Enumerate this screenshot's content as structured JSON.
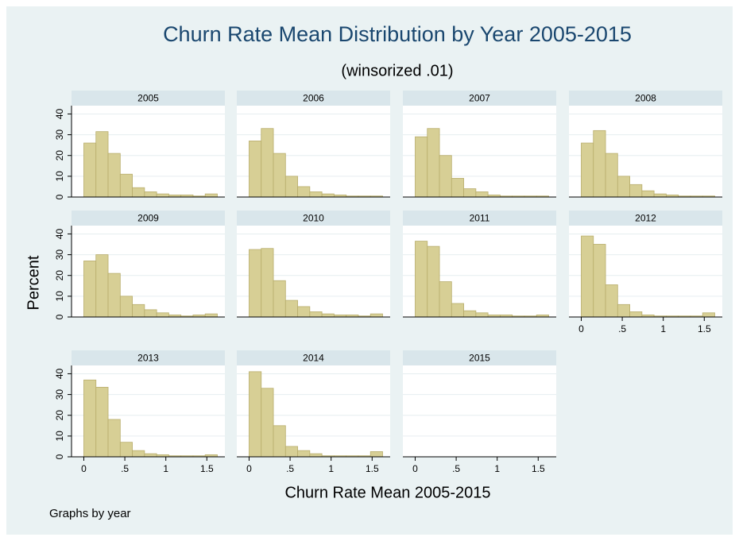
{
  "title": "Churn Rate Mean Distribution by Year 2005-2015",
  "subtitle": "(winsorized .01)",
  "ylabel": "Percent",
  "xlabel": "Churn Rate Mean 2005-2015",
  "note": "Graphs by year",
  "bar_color": "#d7cf95",
  "xlim": [
    -0.15,
    1.72
  ],
  "ylim": [
    0,
    44
  ],
  "xticks": [
    0,
    {
      "value": 0.5,
      "label": ".5"
    },
    1,
    1.5
  ],
  "yticks": [
    0,
    10,
    20,
    30,
    40
  ],
  "grid": true,
  "chart_data": [
    {
      "type": "histogram",
      "title": "2005",
      "bins": [
        0,
        0.148,
        0.296,
        0.444,
        0.592,
        0.74,
        0.888,
        1.036,
        1.184,
        1.332,
        1.48,
        1.628
      ],
      "values": [
        26,
        31.5,
        21,
        11,
        4.5,
        2.5,
        1.5,
        1,
        1,
        0.5,
        1.5
      ]
    },
    {
      "type": "histogram",
      "title": "2006",
      "bins": [
        0,
        0.148,
        0.296,
        0.444,
        0.592,
        0.74,
        0.888,
        1.036,
        1.184,
        1.332,
        1.48,
        1.628
      ],
      "values": [
        27,
        33,
        21,
        10,
        5,
        2.5,
        1.5,
        1,
        0.5,
        0.5,
        0.5
      ]
    },
    {
      "type": "histogram",
      "title": "2007",
      "bins": [
        0,
        0.148,
        0.296,
        0.444,
        0.592,
        0.74,
        0.888,
        1.036,
        1.184,
        1.332,
        1.48,
        1.628
      ],
      "values": [
        29,
        33,
        20,
        9,
        4,
        2.5,
        1,
        0.5,
        0.5,
        0.5,
        0.5
      ]
    },
    {
      "type": "histogram",
      "title": "2008",
      "bins": [
        0,
        0.148,
        0.296,
        0.444,
        0.592,
        0.74,
        0.888,
        1.036,
        1.184,
        1.332,
        1.48,
        1.628
      ],
      "values": [
        26,
        32,
        21,
        10,
        6,
        3,
        1.5,
        1,
        0.5,
        0.5,
        0.5
      ]
    },
    {
      "type": "histogram",
      "title": "2009",
      "bins": [
        0,
        0.148,
        0.296,
        0.444,
        0.592,
        0.74,
        0.888,
        1.036,
        1.184,
        1.332,
        1.48,
        1.628
      ],
      "values": [
        27,
        30,
        21,
        10,
        6,
        3.5,
        2,
        1,
        0.5,
        1,
        1.5
      ]
    },
    {
      "type": "histogram",
      "title": "2010",
      "bins": [
        0,
        0.148,
        0.296,
        0.444,
        0.592,
        0.74,
        0.888,
        1.036,
        1.184,
        1.332,
        1.48,
        1.628
      ],
      "values": [
        32.5,
        33,
        17.5,
        8,
        5,
        2.5,
        1.5,
        1,
        1,
        0.5,
        1.5
      ]
    },
    {
      "type": "histogram",
      "title": "2011",
      "bins": [
        0,
        0.148,
        0.296,
        0.444,
        0.592,
        0.74,
        0.888,
        1.036,
        1.184,
        1.332,
        1.48,
        1.628
      ],
      "values": [
        36.5,
        34,
        17,
        6.5,
        3,
        2,
        1,
        1,
        0.5,
        0.5,
        1
      ]
    },
    {
      "type": "histogram",
      "title": "2012",
      "bins": [
        0,
        0.148,
        0.296,
        0.444,
        0.592,
        0.74,
        0.888,
        1.036,
        1.184,
        1.332,
        1.48,
        1.628
      ],
      "values": [
        39,
        35,
        15.5,
        6,
        2.5,
        1,
        0.5,
        0.5,
        0.5,
        0.5,
        2
      ]
    },
    {
      "type": "histogram",
      "title": "2013",
      "bins": [
        0,
        0.148,
        0.296,
        0.444,
        0.592,
        0.74,
        0.888,
        1.036,
        1.184,
        1.332,
        1.48,
        1.628
      ],
      "values": [
        37,
        33.5,
        18,
        7,
        3,
        1.5,
        1,
        0.5,
        0.5,
        0.5,
        1
      ]
    },
    {
      "type": "histogram",
      "title": "2014",
      "bins": [
        0,
        0.148,
        0.296,
        0.444,
        0.592,
        0.74,
        0.888,
        1.036,
        1.184,
        1.332,
        1.48,
        1.628
      ],
      "values": [
        41,
        33,
        15,
        5,
        3,
        1.5,
        0.5,
        0.5,
        0.5,
        0.5,
        2.5
      ]
    },
    {
      "type": "histogram",
      "title": "2015"
    }
  ]
}
